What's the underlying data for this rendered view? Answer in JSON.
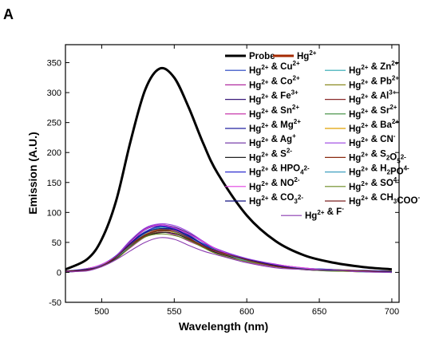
{
  "panel_label": "A",
  "chart_data": {
    "type": "line",
    "xlabel": "Wavelength (nm)",
    "ylabel": "Emission (A.U.)",
    "xlim": [
      475,
      705
    ],
    "ylim": [
      -50,
      380
    ],
    "xticks": [
      500,
      550,
      600,
      650,
      700
    ],
    "yticks": [
      -50,
      0,
      50,
      100,
      150,
      200,
      250,
      300,
      350
    ],
    "grid": false,
    "legend_position": "top-right",
    "series": [
      {
        "name": "Probe",
        "color": "#000000",
        "peak": 340,
        "wide": true,
        "x": [
          475,
          490,
          500,
          510,
          520,
          530,
          540,
          550,
          560,
          570,
          580,
          600,
          620,
          640,
          660,
          680,
          700
        ],
        "y": [
          5,
          22,
          55,
          120,
          220,
          305,
          340,
          325,
          275,
          215,
          165,
          95,
          52,
          28,
          16,
          9,
          5
        ]
      },
      {
        "name": "Hg2+",
        "color": "#a52a00",
        "peak": 70,
        "wide": true
      },
      {
        "name": "Hg2+ & Cu2+",
        "color": "#1f3fbf",
        "peak": 77
      },
      {
        "name": "Hg2+ & Zn2+",
        "color": "#2aa6b0",
        "peak": 74
      },
      {
        "name": "Hg2+ & Co2+",
        "color": "#b02aa0",
        "peak": 66
      },
      {
        "name": "Hg2+ & Pb2+",
        "color": "#8a8a20",
        "peak": 72
      },
      {
        "name": "Hg2+ & Fe3+",
        "color": "#3a1a7a",
        "peak": 80
      },
      {
        "name": "Hg2+ & Al3+",
        "color": "#8a2a2a",
        "peak": 68
      },
      {
        "name": "Hg2+ & Sn2+",
        "color": "#c020a0",
        "peak": 73
      },
      {
        "name": "Hg2+ & Sr2+",
        "color": "#3a8a3a",
        "peak": 69
      },
      {
        "name": "Hg2+ & Mg2+",
        "color": "#2020a0",
        "peak": 75
      },
      {
        "name": "Hg2+ & Ba2+",
        "color": "#e0a000",
        "peak": 71
      },
      {
        "name": "Hg2+ & Ag+",
        "color": "#6a2aa0",
        "peak": 78
      },
      {
        "name": "Hg2+ & CN-",
        "color": "#9a40e0",
        "peak": 82
      },
      {
        "name": "Hg2+ & S2-",
        "color": "#202020",
        "peak": 67
      },
      {
        "name": "Hg2+ & S2O52-",
        "color": "#8a2a10",
        "peak": 70
      },
      {
        "name": "Hg2+ & HPO42-",
        "color": "#3030d0",
        "peak": 76
      },
      {
        "name": "Hg2+ & H2PO4-",
        "color": "#40a0c0",
        "peak": 72
      },
      {
        "name": "Hg2+ & NO2-",
        "color": "#e040e0",
        "peak": 79
      },
      {
        "name": "Hg2+ & SO4-",
        "color": "#6a8a20",
        "peak": 65
      },
      {
        "name": "Hg2+ & CO32-",
        "color": "#101080",
        "peak": 74
      },
      {
        "name": "Hg2+ & CH3COO-",
        "color": "#7a2020",
        "peak": 71
      },
      {
        "name": "Hg2+ & F-",
        "color": "#8a3ab0",
        "peak": 57
      }
    ]
  }
}
